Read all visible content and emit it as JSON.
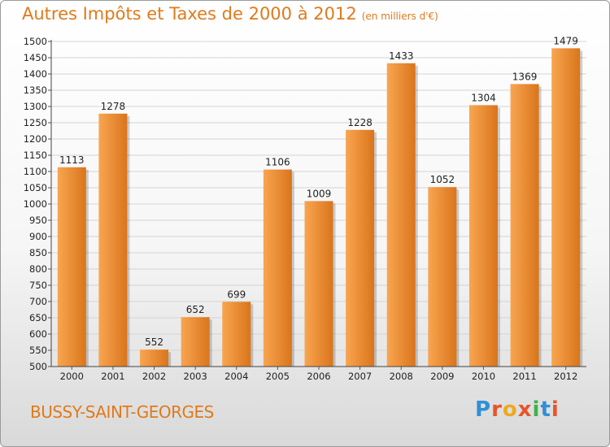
{
  "header": {
    "title": "Autres Impôts et Taxes de 2000 à 2012",
    "unit": "(en milliers d'€)"
  },
  "footer": {
    "city": "BUSSY-SAINT-GEORGES",
    "brand": "Proxiti"
  },
  "colors": {
    "accent": "#e07a1c",
    "bar_light": "#f9a550",
    "bar_dark": "#d9751c",
    "brand_letters": [
      "#2f8fd6",
      "#e8542a",
      "#f0a81e",
      "#e8542a",
      "#3db34a",
      "#2f8fd6",
      "#e8542a"
    ]
  },
  "chart_data": {
    "type": "bar",
    "categories": [
      "2000",
      "2001",
      "2002",
      "2003",
      "2004",
      "2005",
      "2006",
      "2007",
      "2008",
      "2009",
      "2010",
      "2011",
      "2012"
    ],
    "values": [
      1113,
      1278,
      552,
      652,
      699,
      1106,
      1009,
      1228,
      1433,
      1052,
      1304,
      1369,
      1479
    ],
    "title": "Autres Impôts et Taxes de 2000 à 2012",
    "xlabel": "",
    "ylabel": "",
    "ylim": [
      500,
      1500
    ],
    "yticks": [
      500,
      550,
      600,
      650,
      700,
      750,
      800,
      850,
      900,
      950,
      1000,
      1050,
      1100,
      1150,
      1200,
      1250,
      1300,
      1350,
      1400,
      1450,
      1500
    ],
    "grid": true,
    "legend": "none"
  }
}
